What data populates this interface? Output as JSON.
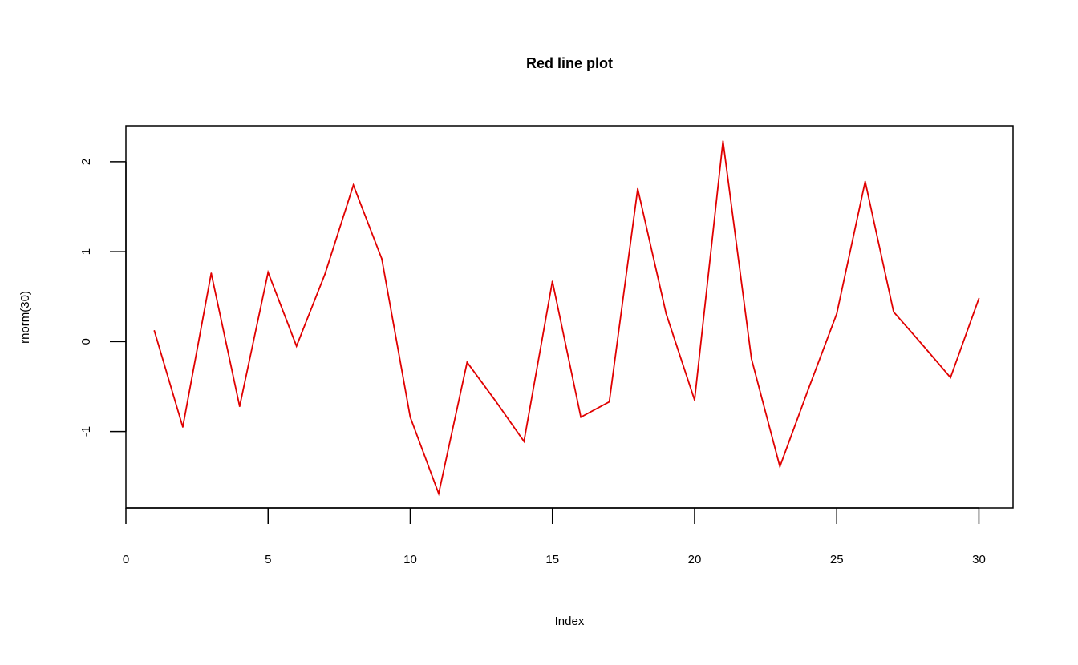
{
  "chart_data": {
    "type": "line",
    "title": "Red line plot",
    "xlabel": "Index",
    "ylabel": "rnorm(30)",
    "x": [
      1,
      2,
      3,
      4,
      5,
      6,
      7,
      8,
      9,
      10,
      11,
      12,
      13,
      14,
      15,
      16,
      17,
      18,
      19,
      20,
      21,
      22,
      23,
      24,
      25,
      26,
      27,
      28,
      29,
      30
    ],
    "series": [
      {
        "values": [
          0.12,
          -0.95,
          0.76,
          -0.72,
          0.77,
          -0.05,
          0.75,
          1.74,
          0.92,
          -0.84,
          -1.69,
          -0.23,
          -0.66,
          -1.11,
          0.67,
          -0.84,
          -0.67,
          1.7,
          0.31,
          -0.65,
          2.23,
          -0.19,
          -1.39,
          -0.53,
          0.31,
          1.78,
          0.33,
          -0.03,
          -0.4,
          0.48
        ],
        "color": "#e00000"
      }
    ],
    "xlim": [
      0,
      31.2
    ],
    "ylim": [
      -1.85,
      2.4
    ],
    "xticks": [
      "0",
      "5",
      "10",
      "15",
      "20",
      "25",
      "30"
    ],
    "yticks": [
      "-1",
      "0",
      "1",
      "2"
    ],
    "grid": false,
    "legend": "none"
  }
}
